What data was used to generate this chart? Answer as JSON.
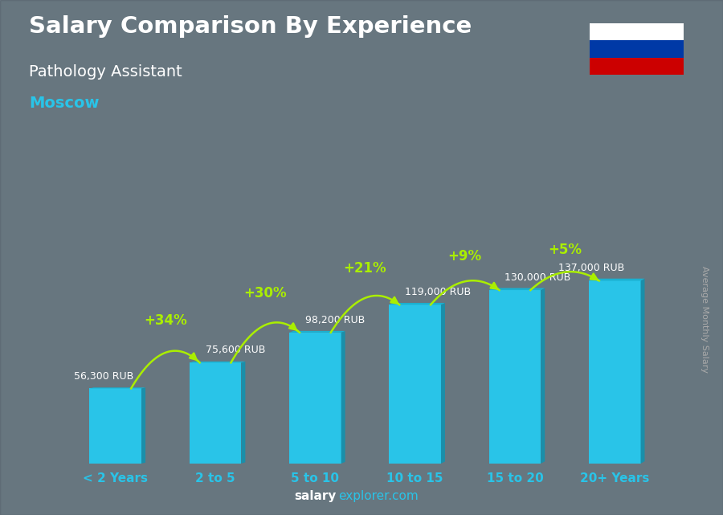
{
  "categories": [
    "< 2 Years",
    "2 to 5",
    "5 to 10",
    "10 to 15",
    "15 to 20",
    "20+ Years"
  ],
  "values": [
    56300,
    75600,
    98200,
    119000,
    130000,
    137000
  ],
  "value_labels": [
    "56,300 RUB",
    "75,600 RUB",
    "98,200 RUB",
    "119,000 RUB",
    "130,000 RUB",
    "137,000 RUB"
  ],
  "pct_labels": [
    "+34%",
    "+30%",
    "+21%",
    "+9%",
    "+5%"
  ],
  "bar_color_main": "#29c4e8",
  "bar_color_dark": "#1a8faa",
  "bar_color_top": "#1ab0d0",
  "title_line1": "Salary Comparison By Experience",
  "subtitle1": "Pathology Assistant",
  "subtitle2": "Moscow",
  "footer_left": "salary",
  "footer_right": "explorer.com",
  "ylabel_rotated": "Average Monthly Salary",
  "title_color": "#ffffff",
  "subtitle1_color": "#ffffff",
  "subtitle2_color": "#29c4e8",
  "xticklabel_color": "#29c4e8",
  "value_label_color": "#ffffff",
  "pct_color": "#aaee00",
  "footer_salary_color": "#ffffff",
  "footer_explorer_color": "#29c4e8",
  "ylabel_color": "#aaaaaa",
  "bg_top": "#6b7c8a",
  "bg_bottom": "#3a4a55"
}
